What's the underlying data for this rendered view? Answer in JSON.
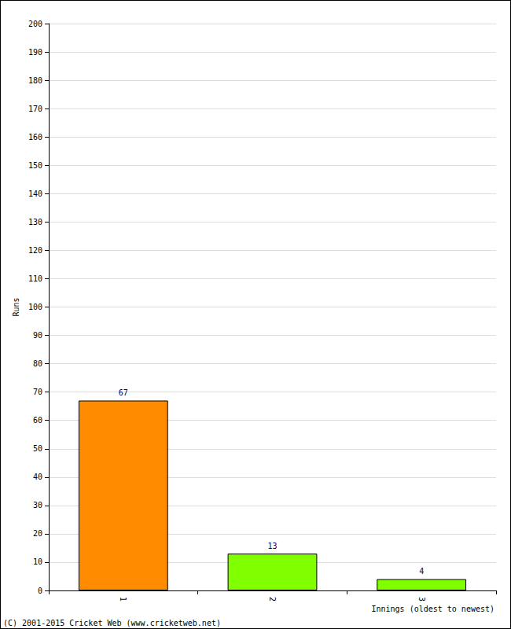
{
  "chart_data": {
    "type": "bar",
    "xlabel": "Innings (oldest to newest)",
    "ylabel": "Runs",
    "annotations": [
      "(C) 2001-2015 Cricket Web (www.cricketweb.net)"
    ],
    "categories": [
      "1",
      "2",
      "3"
    ],
    "values": [
      67,
      13,
      4
    ],
    "colors": [
      "#ff8c00",
      "#80ff00",
      "#80ff00"
    ],
    "ylim": [
      0,
      200
    ],
    "yticks": [
      0,
      10,
      20,
      30,
      40,
      50,
      60,
      70,
      80,
      90,
      100,
      110,
      120,
      130,
      140,
      150,
      160,
      170,
      180,
      190,
      200
    ],
    "grid": true,
    "data_labels": true
  }
}
